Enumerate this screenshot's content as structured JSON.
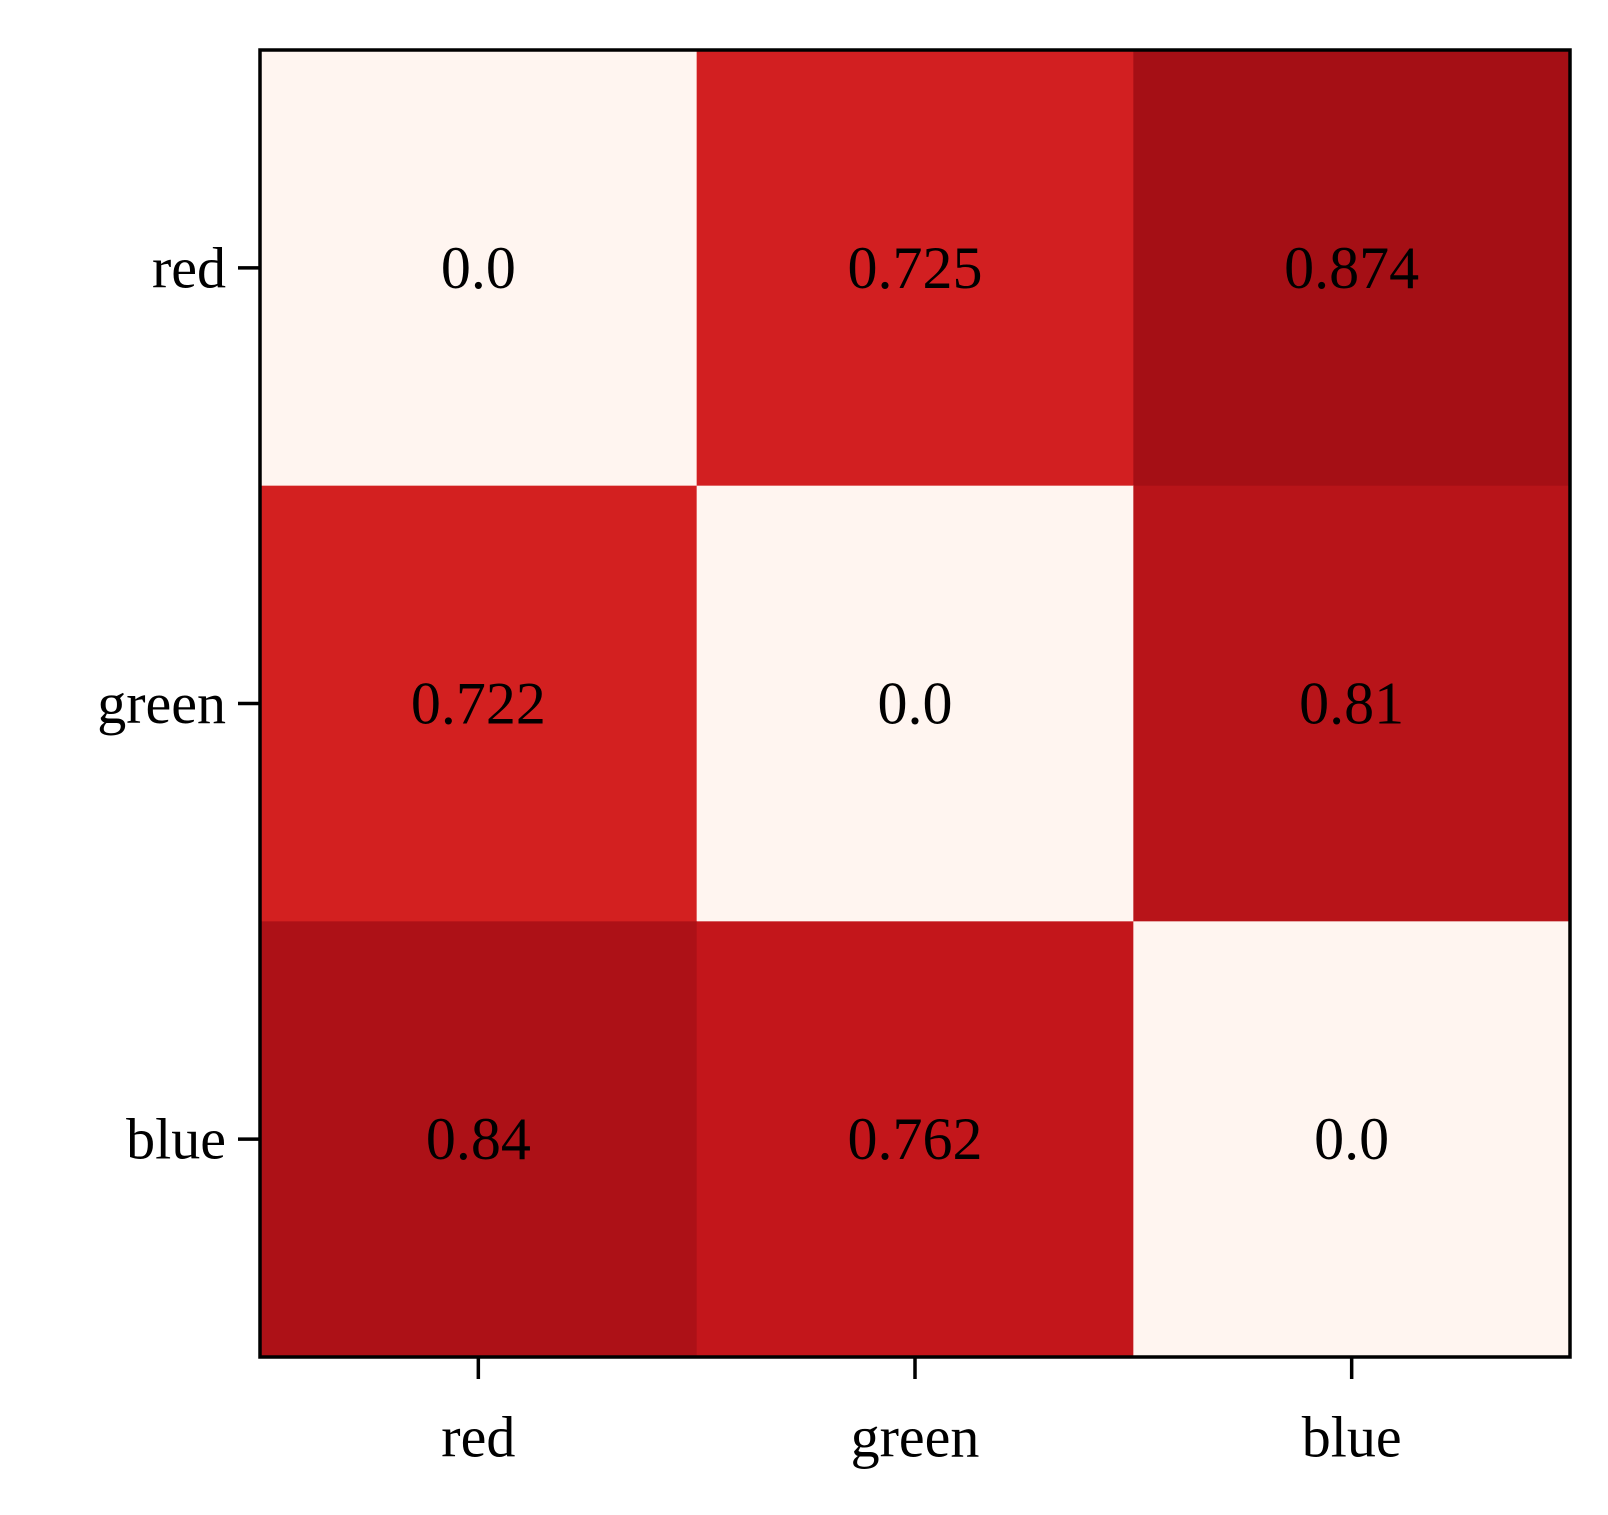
{
  "chart_data": {
    "type": "heatmap",
    "title": "",
    "xlabel": "",
    "ylabel": "",
    "x_categories": [
      "red",
      "green",
      "blue"
    ],
    "y_categories": [
      "red",
      "green",
      "blue"
    ],
    "values": [
      [
        0.0,
        0.725,
        0.874
      ],
      [
        0.722,
        0.0,
        0.81
      ],
      [
        0.84,
        0.762,
        0.0
      ]
    ],
    "value_labels": [
      [
        "0.0",
        "0.725",
        "0.874"
      ],
      [
        "0.722",
        "0.0",
        "0.81"
      ],
      [
        "0.84",
        "0.762",
        "0.0"
      ]
    ],
    "colormap": "Reds",
    "color_range": [
      0.0,
      0.874
    ],
    "cell_colors": [
      [
        "#fff5f0",
        "#d21f21",
        "#a50f15"
      ],
      [
        "#d32020",
        "#fff5f0",
        "#b81419"
      ],
      [
        "#ad1117",
        "#c3161b",
        "#fff5f0"
      ]
    ],
    "grid": false,
    "legend": "none"
  }
}
